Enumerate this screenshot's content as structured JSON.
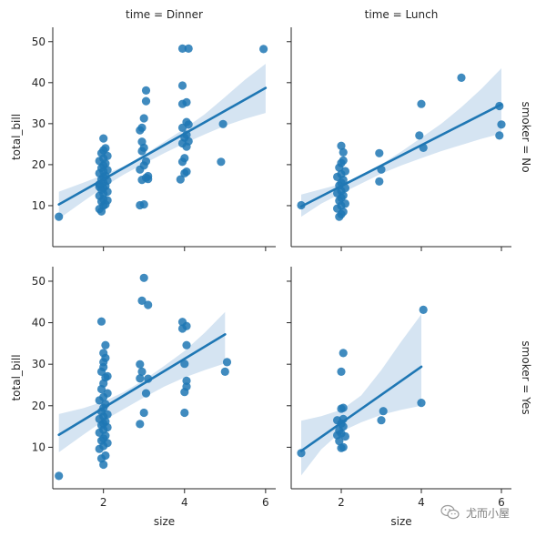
{
  "chart_data": {
    "type": "scatter",
    "layout": "facet-grid",
    "col_variable": "time",
    "row_variable": "smoker",
    "x_variable": "size",
    "y_variable": "total_bill",
    "xlabel": "size",
    "ylabel": "total_bill",
    "xlim": [
      0.75,
      6.25
    ],
    "ylim": [
      0,
      53.5
    ],
    "xticks": [
      2,
      4,
      6
    ],
    "yticks": [
      10,
      20,
      30,
      40,
      50
    ],
    "regression": true,
    "confidence_band": true,
    "point_color": "#1f77b4",
    "band_color": "#c7dbee",
    "col_titles": [
      "time = Dinner",
      "time = Lunch"
    ],
    "row_titles": [
      "smoker = No",
      "smoker = Yes"
    ],
    "panels": [
      {
        "row": 0,
        "col": 0,
        "regression_line": {
          "x": [
            0.9,
            6.0
          ],
          "y": [
            10.3,
            38.7
          ]
        },
        "band": {
          "x": [
            0.9,
            1.5,
            2.0,
            2.5,
            3.0,
            3.5,
            4.0,
            4.5,
            5.0,
            5.5,
            6.0
          ],
          "lower": [
            6.8,
            11.0,
            14.5,
            17.6,
            20.2,
            22.8,
            25.2,
            27.4,
            29.5,
            31.2,
            32.6
          ],
          "upper": [
            13.4,
            15.6,
            17.5,
            19.6,
            22.4,
            25.6,
            28.8,
            32.3,
            36.5,
            40.8,
            44.6
          ]
        },
        "points": [
          [
            0.9,
            7.3
          ],
          [
            1.9,
            9.2
          ],
          [
            2.0,
            10.0
          ],
          [
            2.05,
            10.3
          ],
          [
            1.95,
            11.0
          ],
          [
            2.0,
            11.6
          ],
          [
            1.9,
            12.4
          ],
          [
            2.0,
            12.9
          ],
          [
            2.1,
            13.4
          ],
          [
            1.95,
            13.9
          ],
          [
            2.0,
            14.3
          ],
          [
            2.05,
            14.8
          ],
          [
            1.9,
            15.2
          ],
          [
            2.0,
            15.7
          ],
          [
            2.1,
            16.1
          ],
          [
            1.95,
            16.4
          ],
          [
            2.0,
            17.0
          ],
          [
            2.05,
            17.3
          ],
          [
            1.9,
            17.9
          ],
          [
            2.0,
            18.4
          ],
          [
            2.1,
            18.7
          ],
          [
            1.95,
            19.2
          ],
          [
            2.0,
            19.8
          ],
          [
            2.05,
            20.3
          ],
          [
            1.9,
            20.9
          ],
          [
            2.0,
            21.5
          ],
          [
            2.1,
            22.1
          ],
          [
            1.95,
            22.8
          ],
          [
            2.0,
            23.5
          ],
          [
            2.05,
            24.0
          ],
          [
            2.0,
            26.4
          ],
          [
            1.95,
            8.6
          ],
          [
            2.1,
            11.3
          ],
          [
            1.9,
            14.6
          ],
          [
            2.9,
            10.1
          ],
          [
            3.0,
            10.3
          ],
          [
            2.95,
            16.3
          ],
          [
            3.05,
            16.8
          ],
          [
            3.1,
            17.2
          ],
          [
            2.9,
            18.8
          ],
          [
            3.0,
            19.8
          ],
          [
            3.05,
            20.8
          ],
          [
            2.95,
            23.3
          ],
          [
            3.0,
            24.1
          ],
          [
            2.95,
            25.6
          ],
          [
            2.9,
            28.4
          ],
          [
            2.95,
            29.0
          ],
          [
            3.0,
            31.3
          ],
          [
            3.05,
            35.5
          ],
          [
            3.05,
            38.1
          ],
          [
            3.1,
            16.5
          ],
          [
            3.9,
            16.4
          ],
          [
            4.0,
            17.9
          ],
          [
            4.05,
            18.3
          ],
          [
            3.95,
            20.7
          ],
          [
            4.0,
            21.6
          ],
          [
            4.05,
            24.4
          ],
          [
            3.95,
            25.2
          ],
          [
            4.1,
            25.7
          ],
          [
            4.0,
            26.6
          ],
          [
            4.05,
            27.3
          ],
          [
            3.95,
            29.0
          ],
          [
            4.1,
            29.8
          ],
          [
            4.05,
            30.4
          ],
          [
            3.95,
            34.8
          ],
          [
            4.05,
            35.2
          ],
          [
            3.95,
            39.3
          ],
          [
            3.95,
            48.3
          ],
          [
            4.1,
            48.3
          ],
          [
            4.9,
            20.7
          ],
          [
            4.95,
            29.9
          ],
          [
            5.95,
            48.2
          ]
        ]
      },
      {
        "row": 0,
        "col": 1,
        "regression_line": {
          "x": [
            1.0,
            6.0
          ],
          "y": [
            9.8,
            34.7
          ]
        },
        "band": {
          "x": [
            1.0,
            1.5,
            2.0,
            2.5,
            3.0,
            3.5,
            4.0,
            4.5,
            5.0,
            5.5,
            6.0
          ],
          "lower": [
            7.3,
            10.5,
            13.0,
            15.4,
            17.8,
            19.8,
            21.6,
            23.3,
            24.8,
            26.3,
            27.6
          ],
          "upper": [
            12.7,
            14.0,
            15.3,
            17.3,
            20.1,
            23.2,
            26.6,
            30.0,
            34.0,
            38.5,
            43.5
          ]
        },
        "points": [
          [
            1.0,
            10.1
          ],
          [
            1.95,
            7.3
          ],
          [
            2.0,
            7.9
          ],
          [
            2.05,
            8.5
          ],
          [
            1.9,
            9.3
          ],
          [
            2.0,
            10.0
          ],
          [
            2.1,
            10.5
          ],
          [
            1.95,
            11.2
          ],
          [
            2.0,
            11.9
          ],
          [
            2.05,
            12.5
          ],
          [
            1.9,
            13.0
          ],
          [
            2.0,
            13.6
          ],
          [
            2.1,
            14.3
          ],
          [
            1.95,
            14.9
          ],
          [
            2.0,
            15.6
          ],
          [
            2.05,
            16.3
          ],
          [
            1.9,
            17.0
          ],
          [
            2.0,
            17.7
          ],
          [
            2.1,
            18.4
          ],
          [
            1.95,
            19.3
          ],
          [
            2.0,
            20.4
          ],
          [
            2.05,
            21.0
          ],
          [
            2.05,
            23.0
          ],
          [
            2.0,
            24.6
          ],
          [
            2.95,
            15.9
          ],
          [
            3.0,
            18.8
          ],
          [
            2.95,
            22.8
          ],
          [
            3.95,
            27.1
          ],
          [
            4.05,
            24.1
          ],
          [
            4.0,
            34.8
          ],
          [
            5.0,
            41.2
          ],
          [
            5.95,
            27.1
          ],
          [
            6.0,
            29.8
          ],
          [
            5.95,
            34.3
          ]
        ]
      },
      {
        "row": 1,
        "col": 0,
        "regression_line": {
          "x": [
            0.9,
            5.0
          ],
          "y": [
            13.0,
            37.2
          ]
        },
        "band": {
          "x": [
            0.9,
            1.5,
            2.0,
            2.5,
            3.0,
            3.5,
            4.0,
            4.5,
            5.0
          ],
          "lower": [
            8.8,
            13.0,
            16.4,
            19.2,
            22.0,
            24.6,
            26.8,
            28.6,
            30.2
          ],
          "upper": [
            18.0,
            19.4,
            21.0,
            23.3,
            26.2,
            29.6,
            33.2,
            37.6,
            42.6
          ]
        },
        "points": [
          [
            0.9,
            3.1
          ],
          [
            2.0,
            5.8
          ],
          [
            1.95,
            7.3
          ],
          [
            2.05,
            8.0
          ],
          [
            1.9,
            9.6
          ],
          [
            2.0,
            10.3
          ],
          [
            2.1,
            11.0
          ],
          [
            1.95,
            11.6
          ],
          [
            2.0,
            12.1
          ],
          [
            2.05,
            12.8
          ],
          [
            1.9,
            13.5
          ],
          [
            2.0,
            14.2
          ],
          [
            2.1,
            14.8
          ],
          [
            1.95,
            15.3
          ],
          [
            2.0,
            15.7
          ],
          [
            2.05,
            16.2
          ],
          [
            1.9,
            16.8
          ],
          [
            2.0,
            17.4
          ],
          [
            2.1,
            17.9
          ],
          [
            1.95,
            18.6
          ],
          [
            2.0,
            19.5
          ],
          [
            2.05,
            20.4
          ],
          [
            1.9,
            21.3
          ],
          [
            2.0,
            22.1
          ],
          [
            2.1,
            23.0
          ],
          [
            1.95,
            24.0
          ],
          [
            2.0,
            25.4
          ],
          [
            2.05,
            26.8
          ],
          [
            2.1,
            27.1
          ],
          [
            1.95,
            28.2
          ],
          [
            2.0,
            29.3
          ],
          [
            2.0,
            30.5
          ],
          [
            2.05,
            31.5
          ],
          [
            2.0,
            32.7
          ],
          [
            2.05,
            34.6
          ],
          [
            1.95,
            40.3
          ],
          [
            2.9,
            15.6
          ],
          [
            3.0,
            18.3
          ],
          [
            3.05,
            23.0
          ],
          [
            2.9,
            26.6
          ],
          [
            2.95,
            28.2
          ],
          [
            3.1,
            26.5
          ],
          [
            2.9,
            30.0
          ],
          [
            3.1,
            44.3
          ],
          [
            2.95,
            45.3
          ],
          [
            3.0,
            50.8
          ],
          [
            4.0,
            18.3
          ],
          [
            4.0,
            23.3
          ],
          [
            4.05,
            24.6
          ],
          [
            4.05,
            26.0
          ],
          [
            4.0,
            30.1
          ],
          [
            4.05,
            34.6
          ],
          [
            3.95,
            38.6
          ],
          [
            4.05,
            39.2
          ],
          [
            3.95,
            40.2
          ],
          [
            5.0,
            28.2
          ],
          [
            5.05,
            30.5
          ]
        ]
      },
      {
        "row": 1,
        "col": 1,
        "regression_line": {
          "x": [
            1.0,
            4.0
          ],
          "y": [
            9.1,
            29.4
          ]
        },
        "band": {
          "x": [
            1.0,
            1.5,
            2.0,
            2.5,
            3.0,
            3.5,
            4.0
          ],
          "lower": [
            3.2,
            9.5,
            13.8,
            16.0,
            17.8,
            19.0,
            20.0
          ],
          "upper": [
            16.4,
            17.5,
            19.0,
            22.5,
            28.6,
            35.5,
            42.0
          ]
        },
        "points": [
          [
            1.0,
            8.6
          ],
          [
            2.0,
            9.8
          ],
          [
            2.05,
            10.0
          ],
          [
            1.95,
            11.5
          ],
          [
            1.9,
            12.9
          ],
          [
            2.1,
            12.6
          ],
          [
            2.0,
            13.3
          ],
          [
            1.95,
            14.0
          ],
          [
            2.05,
            15.0
          ],
          [
            2.0,
            15.7
          ],
          [
            1.9,
            16.5
          ],
          [
            2.05,
            16.8
          ],
          [
            2.0,
            19.3
          ],
          [
            2.05,
            19.5
          ],
          [
            2.0,
            28.2
          ],
          [
            2.05,
            32.7
          ],
          [
            3.0,
            16.5
          ],
          [
            3.05,
            18.7
          ],
          [
            4.0,
            20.7
          ],
          [
            4.05,
            43.1
          ]
        ]
      }
    ]
  },
  "watermark": {
    "text": "尤而小屋"
  }
}
